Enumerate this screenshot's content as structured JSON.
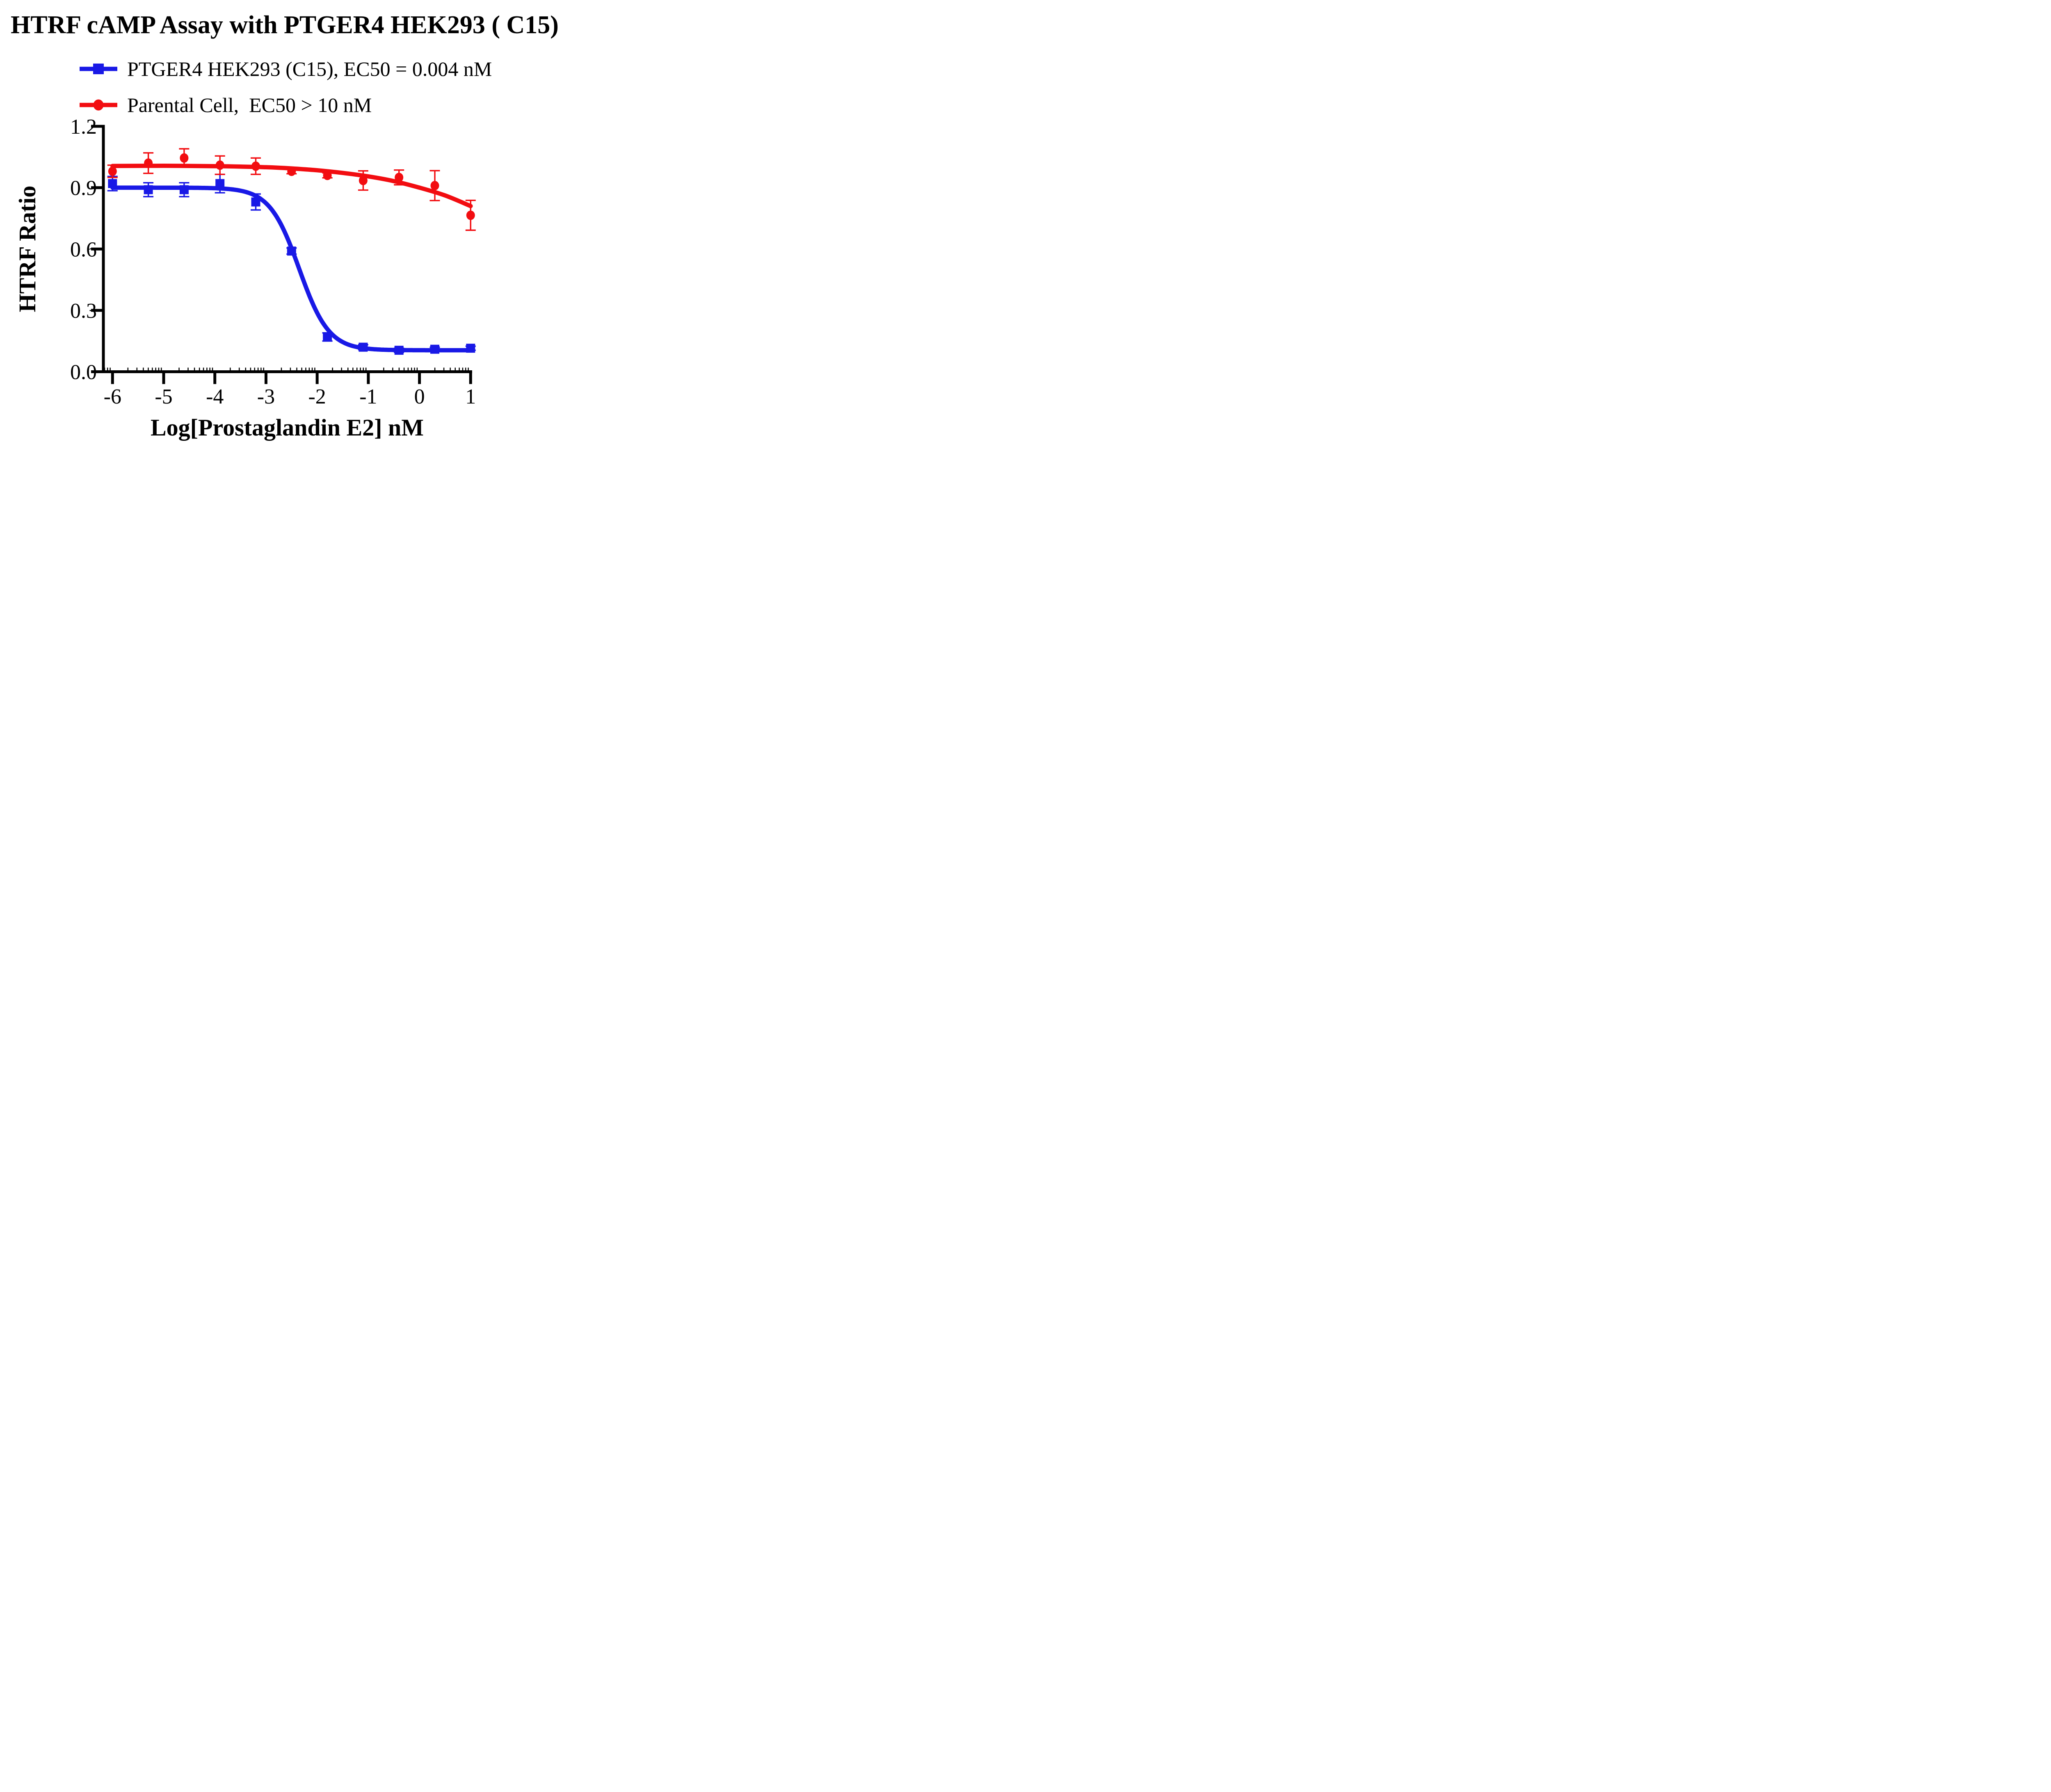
{
  "title": "HTRF cAMP Assay with PTGER4 HEK293 ( C15)",
  "colors": {
    "blue": "#1919E6",
    "red": "#F20D11",
    "axis": "#000000",
    "background": "#FFFFFF"
  },
  "legend": {
    "items": [
      {
        "label": "PTGER4 HEK293 (C15), EC50 = 0.004 nM",
        "marker": "square",
        "color": "#1919E6"
      },
      {
        "label": "Parental Cell,  EC50 > 10 nM",
        "marker": "circle",
        "color": "#F20D11"
      }
    ]
  },
  "chart_data": {
    "type": "line",
    "title": "HTRF cAMP Assay with PTGER4 HEK293 ( C15)",
    "xlabel": "Log[Prostaglandin E2] nM",
    "ylabel": "HTRF Ratio",
    "xlim": [
      -6,
      1
    ],
    "ylim": [
      0,
      1.2
    ],
    "x_ticks": [
      -6,
      -5,
      -4,
      -3,
      -2,
      -1,
      0,
      1
    ],
    "y_ticks": [
      0.0,
      0.3,
      0.6,
      0.9,
      1.2
    ],
    "x_minor_ticks": "log-decade",
    "grid": false,
    "legend_position": "top-left",
    "x": [
      -6,
      -5.3,
      -4.6,
      -3.9,
      -3.2,
      -2.5,
      -1.8,
      -1.1,
      -0.4,
      0.3,
      1
    ],
    "series": [
      {
        "name": "PTGER4 HEK293 (C15)",
        "ec50": "EC50 = 0.004 nM",
        "color": "#1919E6",
        "marker": "square",
        "values": [
          0.92,
          0.89,
          0.89,
          0.92,
          0.83,
          0.59,
          0.17,
          0.12,
          0.105,
          0.11,
          0.115
        ],
        "errors": [
          0.035,
          0.034,
          0.034,
          0.045,
          0.039,
          0.015,
          0.02,
          0.012,
          0.01,
          0.01,
          0.01
        ],
        "fit": {
          "top": 0.9,
          "bottom": 0.105,
          "logec50": -2.35,
          "hill": 1.5
        }
      },
      {
        "name": "Parental Cell",
        "ec50": "EC50 > 10 nM",
        "color": "#F20D11",
        "marker": "circle",
        "values": [
          0.98,
          1.02,
          1.045,
          1.01,
          1.005,
          0.98,
          0.96,
          0.935,
          0.95,
          0.91,
          0.765
        ],
        "errors": [
          0.03,
          0.05,
          0.045,
          0.045,
          0.04,
          0.012,
          0.012,
          0.047,
          0.036,
          0.073,
          0.073
        ],
        "curve": [
          [
            -6,
            1.006
          ],
          [
            -5,
            1.007
          ],
          [
            -4,
            1.005
          ],
          [
            -3.5,
            1.003
          ],
          [
            -3,
            1.0
          ],
          [
            -2.5,
            0.994
          ],
          [
            -2,
            0.985
          ],
          [
            -1.5,
            0.972
          ],
          [
            -1,
            0.955
          ],
          [
            -0.5,
            0.932
          ],
          [
            0,
            0.9
          ],
          [
            0.5,
            0.862
          ],
          [
            1,
            0.81
          ]
        ]
      }
    ]
  }
}
